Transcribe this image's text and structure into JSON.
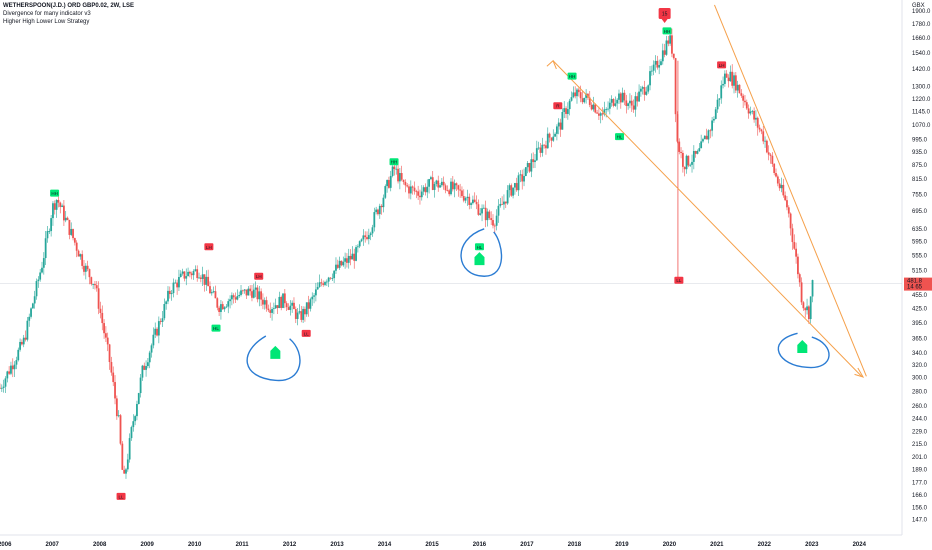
{
  "header": {
    "symbol_line": "WETHERSPOON(J.D.) ORD GBP0.02, 2W, LSE",
    "indicator_1": "Divergence for many indicator v3",
    "indicator_2": "Higher High Lower Low Strategy"
  },
  "price_axis": {
    "currency": "GBX",
    "ticks": [
      "1900.0",
      "1780.0",
      "1660.0",
      "1540.0",
      "1420.0",
      "1300.0",
      "1220.0",
      "1145.0",
      "1070.0",
      "995.0",
      "935.0",
      "875.0",
      "815.0",
      "755.0",
      "695.0",
      "635.0",
      "595.0",
      "555.0",
      "515.0",
      "455.0",
      "425.0",
      "395.0",
      "365.0",
      "340.0",
      "320.0",
      "300.0",
      "280.0",
      "260.0",
      "244.0",
      "229.0",
      "215.0",
      "201.0",
      "189.0",
      "177.0",
      "166.0",
      "156.0",
      "147.0"
    ],
    "last_price": "481.8",
    "last_change": "14 65"
  },
  "time_axis": {
    "labels": [
      "2006",
      "2007",
      "2008",
      "2009",
      "2010",
      "2011",
      "2012",
      "2013",
      "2014",
      "2015",
      "2016",
      "2017",
      "2018",
      "2019",
      "2020",
      "2021",
      "2022",
      "2023",
      "2024"
    ]
  },
  "colors": {
    "up": "#26a69a",
    "down": "#ef5350",
    "trendline": "#f5a04a",
    "circle": "#2b7cd3",
    "signal_green": "#00e676",
    "signal_red": "#f23645"
  },
  "chart_data": {
    "type": "candlestick",
    "title": "WETHERSPOON(J.D.) ORD GBP0.02, 2W, LSE",
    "y_scale": "log",
    "ylabel": "GBX",
    "ylim": [
      140,
      1950
    ],
    "xlim": [
      2005.9,
      2024.9
    ],
    "close_path": [
      [
        2005.9,
        285
      ],
      [
        2006.4,
        360
      ],
      [
        2006.8,
        540
      ],
      [
        2007.0,
        705
      ],
      [
        2007.1,
        740
      ],
      [
        2007.4,
        620
      ],
      [
        2007.7,
        520
      ],
      [
        2007.9,
        480
      ],
      [
        2008.2,
        330
      ],
      [
        2008.4,
        240
      ],
      [
        2008.5,
        175
      ],
      [
        2008.7,
        240
      ],
      [
        2008.9,
        310
      ],
      [
        2009.2,
        380
      ],
      [
        2009.5,
        470
      ],
      [
        2009.8,
        505
      ],
      [
        2010.1,
        515
      ],
      [
        2010.3,
        470
      ],
      [
        2010.5,
        430
      ],
      [
        2010.8,
        450
      ],
      [
        2011.2,
        465
      ],
      [
        2011.6,
        430
      ],
      [
        2011.9,
        445
      ],
      [
        2012.2,
        405
      ],
      [
        2012.4,
        430
      ],
      [
        2012.7,
        490
      ],
      [
        2013.0,
        520
      ],
      [
        2013.4,
        560
      ],
      [
        2013.7,
        640
      ],
      [
        2014.0,
        760
      ],
      [
        2014.2,
        860
      ],
      [
        2014.4,
        790
      ],
      [
        2014.7,
        760
      ],
      [
        2015.0,
        800
      ],
      [
        2015.4,
        780
      ],
      [
        2015.8,
        740
      ],
      [
        2016.0,
        700
      ],
      [
        2016.3,
        660
      ],
      [
        2016.6,
        760
      ],
      [
        2016.9,
        820
      ],
      [
        2017.3,
        960
      ],
      [
        2017.7,
        1070
      ],
      [
        2017.8,
        1150
      ],
      [
        2018.0,
        1250
      ],
      [
        2018.3,
        1220
      ],
      [
        2018.6,
        1120
      ],
      [
        2018.9,
        1250
      ],
      [
        2019.2,
        1180
      ],
      [
        2019.5,
        1300
      ],
      [
        2019.8,
        1500
      ],
      [
        2020.0,
        1660
      ],
      [
        2020.1,
        1500
      ],
      [
        2020.15,
        1000
      ],
      [
        2020.3,
        880
      ],
      [
        2020.6,
        920
      ],
      [
        2020.9,
        1080
      ],
      [
        2021.1,
        1300
      ],
      [
        2021.2,
        1400
      ],
      [
        2021.4,
        1320
      ],
      [
        2021.7,
        1150
      ],
      [
        2022.0,
        1000
      ],
      [
        2022.2,
        850
      ],
      [
        2022.5,
        700
      ],
      [
        2022.7,
        520
      ],
      [
        2022.8,
        440
      ],
      [
        2022.95,
        415
      ],
      [
        2023.0,
        480
      ]
    ],
    "annotations": [
      {
        "label": "HH",
        "x": 2007.05,
        "price": 760,
        "color": "green"
      },
      {
        "label": "LL",
        "x": 2008.45,
        "price": 165,
        "color": "red"
      },
      {
        "label": "LH",
        "x": 2010.3,
        "price": 580,
        "color": "red"
      },
      {
        "label": "HL",
        "x": 2010.45,
        "price": 385,
        "color": "green"
      },
      {
        "label": "LH",
        "x": 2011.35,
        "price": 500,
        "color": "red"
      },
      {
        "label": "LL",
        "x": 2012.35,
        "price": 375,
        "color": "red"
      },
      {
        "label": "HH",
        "x": 2014.2,
        "price": 890,
        "color": "green"
      },
      {
        "label": "HL",
        "x": 2016.0,
        "price": 580,
        "color": "green"
      },
      {
        "label": "R",
        "x": 2017.65,
        "price": 1180,
        "color": "red"
      },
      {
        "label": "HH",
        "x": 2017.95,
        "price": 1370,
        "color": "green"
      },
      {
        "label": "HL",
        "x": 2018.95,
        "price": 1010,
        "color": "green"
      },
      {
        "label": "HH",
        "x": 2019.95,
        "price": 1720,
        "color": "green"
      },
      {
        "label": "LL",
        "x": 2020.2,
        "price": 490,
        "color": "red"
      },
      {
        "label": "LH",
        "x": 2021.1,
        "price": 1450,
        "color": "red"
      }
    ]
  }
}
